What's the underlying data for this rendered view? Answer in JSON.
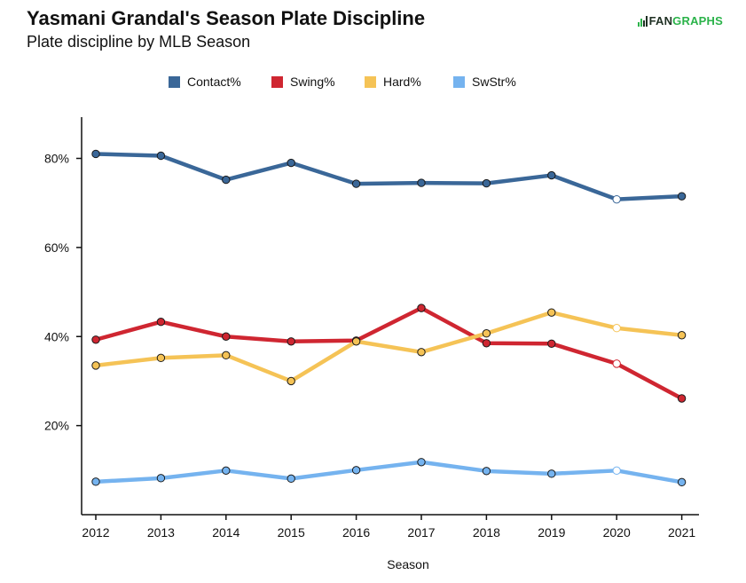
{
  "header": {
    "title": "Yasmani Grandal's Season Plate Discipline",
    "subtitle": "Plate discipline by MLB Season"
  },
  "logo": {
    "part1": "FAN",
    "part2": "GRAPHS",
    "icon": "fangraphs-bars-icon"
  },
  "colors": {
    "contact": "#3a6798",
    "swing": "#cf2631",
    "hard": "#f5c356",
    "swstr": "#75b3ef"
  },
  "chart_data": {
    "type": "line",
    "title": "Yasmani Grandal's Season Plate Discipline",
    "subtitle": "Plate discipline by MLB Season",
    "xlabel": "Season",
    "ylabel": "",
    "x": [
      2012,
      2013,
      2014,
      2015,
      2016,
      2017,
      2018,
      2019,
      2020,
      2021
    ],
    "y_ticks": [
      20,
      40,
      60,
      80
    ],
    "y_tick_labels": [
      "20%",
      "40%",
      "60%",
      "80%"
    ],
    "ylim": [
      0,
      89
    ],
    "legend_position": "top",
    "grid": false,
    "series": [
      {
        "name": "Contact%",
        "color": "#3a6798",
        "values": [
          81.0,
          80.6,
          75.2,
          79.0,
          74.3,
          74.5,
          74.4,
          76.2,
          70.8,
          71.5
        ],
        "hollow_index": 8
      },
      {
        "name": "Swing%",
        "color": "#cf2631",
        "values": [
          39.3,
          43.3,
          40.0,
          38.9,
          39.1,
          46.4,
          38.5,
          38.4,
          33.9,
          26.1
        ],
        "hollow_index": 8
      },
      {
        "name": "Hard%",
        "color": "#f5c356",
        "values": [
          33.5,
          35.2,
          35.8,
          30.0,
          38.9,
          36.5,
          40.7,
          45.4,
          41.9,
          40.3
        ],
        "hollow_index": 8
      },
      {
        "name": "SwStr%",
        "color": "#75b3ef",
        "values": [
          7.4,
          8.2,
          9.9,
          8.1,
          10.0,
          11.8,
          9.8,
          9.2,
          9.9,
          7.3
        ],
        "hollow_index": 8
      }
    ]
  }
}
